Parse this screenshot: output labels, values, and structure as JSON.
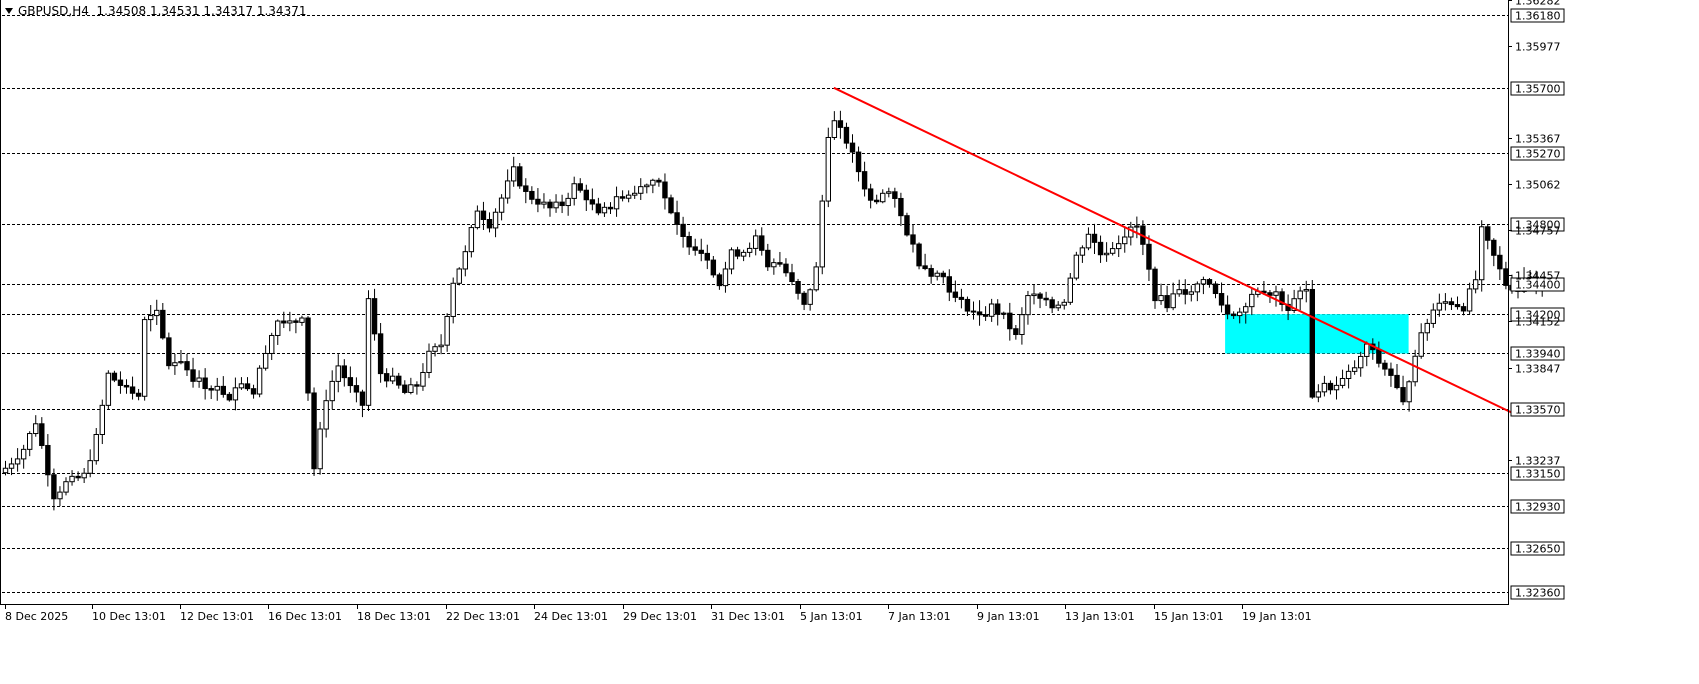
{
  "header": {
    "symbol": "GBPUSD,H4",
    "ohlc": "1.34508 1.34531 1.34317 1.34371"
  },
  "colors": {
    "trendline": "#ff0000",
    "zone": "#00ffff",
    "bull": "#ffffff",
    "bear": "#000000"
  },
  "chart_data": {
    "type": "candlestick",
    "symbol": "GBPUSD",
    "timeframe": "H4",
    "price_ticks": [
      1.36282,
      1.35977,
      1.35367,
      1.35062,
      1.34757,
      1.34457,
      1.34152,
      1.33847,
      1.33237
    ],
    "levels": [
      1.3618,
      1.357,
      1.3527,
      1.348,
      1.344,
      1.342,
      1.3394,
      1.3357,
      1.3315,
      1.3293,
      1.3265,
      1.3236
    ],
    "level_labels": [
      "1.36180",
      "1.35700",
      "1.35270",
      "1.34800",
      "1.34400",
      "1.34200",
      "1.33940",
      "1.33570",
      "1.33150",
      "1.32930",
      "1.32650",
      "1.32360"
    ],
    "price_tick_labels": [
      "1.36282",
      "1.35977",
      "1.35367",
      "1.35062",
      "1.34757",
      "1.34457",
      "1.34152",
      "1.33847",
      "1.33237"
    ],
    "x_labels": [
      "8 Dec 2025",
      "10 Dec 13:01",
      "12 Dec 13:01",
      "16 Dec 13:01",
      "18 Dec 13:01",
      "22 Dec 13:01",
      "24 Dec 13:01",
      "29 Dec 13:01",
      "31 Dec 13:01",
      "5 Jan 13:01",
      "7 Jan 13:01",
      "9 Jan 13:01",
      "13 Jan 13:01",
      "15 Jan 13:01",
      "19 Jan 13:01"
    ],
    "price_range": [
      1.3228,
      1.36282
    ],
    "trendline": {
      "from": [
        137,
        1.357
      ],
      "to": [
        250,
        1.3353
      ]
    },
    "zone": {
      "start": 202,
      "end": 232,
      "high": 1.342,
      "low": 1.3394
    },
    "anchors": [
      [
        0,
        1.3318
      ],
      [
        3,
        1.3331
      ],
      [
        5,
        1.3349
      ],
      [
        8,
        1.33
      ],
      [
        10,
        1.3308
      ],
      [
        13,
        1.3313
      ],
      [
        15,
        1.3338
      ],
      [
        17,
        1.338
      ],
      [
        20,
        1.337
      ],
      [
        22,
        1.3366
      ],
      [
        23,
        1.3415
      ],
      [
        25,
        1.342
      ],
      [
        27,
        1.3387
      ],
      [
        29,
        1.339
      ],
      [
        31,
        1.3378
      ],
      [
        33,
        1.3373
      ],
      [
        35,
        1.3371
      ],
      [
        37,
        1.3366
      ],
      [
        39,
        1.3376
      ],
      [
        41,
        1.3368
      ],
      [
        43,
        1.3397
      ],
      [
        45,
        1.3416
      ],
      [
        47,
        1.3413
      ],
      [
        49,
        1.342
      ],
      [
        51,
        1.3318
      ],
      [
        53,
        1.3365
      ],
      [
        55,
        1.3386
      ],
      [
        57,
        1.3371
      ],
      [
        59,
        1.336
      ],
      [
        60,
        1.343
      ],
      [
        62,
        1.3381
      ],
      [
        64,
        1.3376
      ],
      [
        66,
        1.3368
      ],
      [
        68,
        1.3373
      ],
      [
        70,
        1.3393
      ],
      [
        72,
        1.34
      ],
      [
        74,
        1.3442
      ],
      [
        76,
        1.346
      ],
      [
        78,
        1.349
      ],
      [
        80,
        1.348
      ],
      [
        82,
        1.3497
      ],
      [
        84,
        1.3515
      ],
      [
        86,
        1.35
      ],
      [
        88,
        1.3495
      ],
      [
        90,
        1.349
      ],
      [
        92,
        1.3493
      ],
      [
        94,
        1.3505
      ],
      [
        96,
        1.3498
      ],
      [
        98,
        1.3485
      ],
      [
        100,
        1.3492
      ],
      [
        102,
        1.3498
      ],
      [
        104,
        1.35
      ],
      [
        106,
        1.3508
      ],
      [
        108,
        1.351
      ],
      [
        110,
        1.3485
      ],
      [
        112,
        1.347
      ],
      [
        114,
        1.3465
      ],
      [
        116,
        1.3458
      ],
      [
        118,
        1.344
      ],
      [
        120,
        1.346
      ],
      [
        122,
        1.3462
      ],
      [
        124,
        1.347
      ],
      [
        126,
        1.345
      ],
      [
        128,
        1.3455
      ],
      [
        130,
        1.344
      ],
      [
        132,
        1.3425
      ],
      [
        134,
        1.345
      ],
      [
        136,
        1.354
      ],
      [
        137,
        1.3547
      ],
      [
        139,
        1.3535
      ],
      [
        141,
        1.3515
      ],
      [
        143,
        1.3495
      ],
      [
        145,
        1.35
      ],
      [
        147,
        1.3494
      ],
      [
        149,
        1.3475
      ],
      [
        151,
        1.3455
      ],
      [
        153,
        1.3448
      ],
      [
        155,
        1.3445
      ],
      [
        157,
        1.343
      ],
      [
        159,
        1.3425
      ],
      [
        161,
        1.3418
      ],
      [
        163,
        1.3425
      ],
      [
        165,
        1.3418
      ],
      [
        167,
        1.3405
      ],
      [
        169,
        1.3432
      ],
      [
        171,
        1.343
      ],
      [
        173,
        1.3425
      ],
      [
        175,
        1.343
      ],
      [
        177,
        1.3458
      ],
      [
        179,
        1.3474
      ],
      [
        181,
        1.346
      ],
      [
        183,
        1.3465
      ],
      [
        185,
        1.3473
      ],
      [
        187,
        1.3478
      ],
      [
        188,
        1.3465
      ],
      [
        190,
        1.3432
      ],
      [
        192,
        1.3427
      ],
      [
        194,
        1.3438
      ],
      [
        196,
        1.3433
      ],
      [
        198,
        1.3445
      ],
      [
        200,
        1.3433
      ],
      [
        202,
        1.342
      ],
      [
        204,
        1.3422
      ],
      [
        206,
        1.3434
      ],
      [
        208,
        1.3432
      ],
      [
        210,
        1.3434
      ],
      [
        212,
        1.3423
      ],
      [
        214,
        1.3434
      ],
      [
        215,
        1.3435
      ],
      [
        216,
        1.3367
      ],
      [
        218,
        1.3372
      ],
      [
        220,
        1.3372
      ],
      [
        222,
        1.338
      ],
      [
        224,
        1.339
      ],
      [
        225,
        1.34
      ],
      [
        227,
        1.3388
      ],
      [
        229,
        1.338
      ],
      [
        231,
        1.336
      ],
      [
        233,
        1.3395
      ],
      [
        235,
        1.3415
      ],
      [
        237,
        1.343
      ],
      [
        239,
        1.3428
      ],
      [
        241,
        1.3425
      ],
      [
        243,
        1.3443
      ],
      [
        244,
        1.3475
      ],
      [
        246,
        1.3458
      ],
      [
        248,
        1.344
      ],
      [
        250,
        1.3437
      ],
      [
        252,
        1.3445
      ],
      [
        254,
        1.3437
      ]
    ]
  }
}
